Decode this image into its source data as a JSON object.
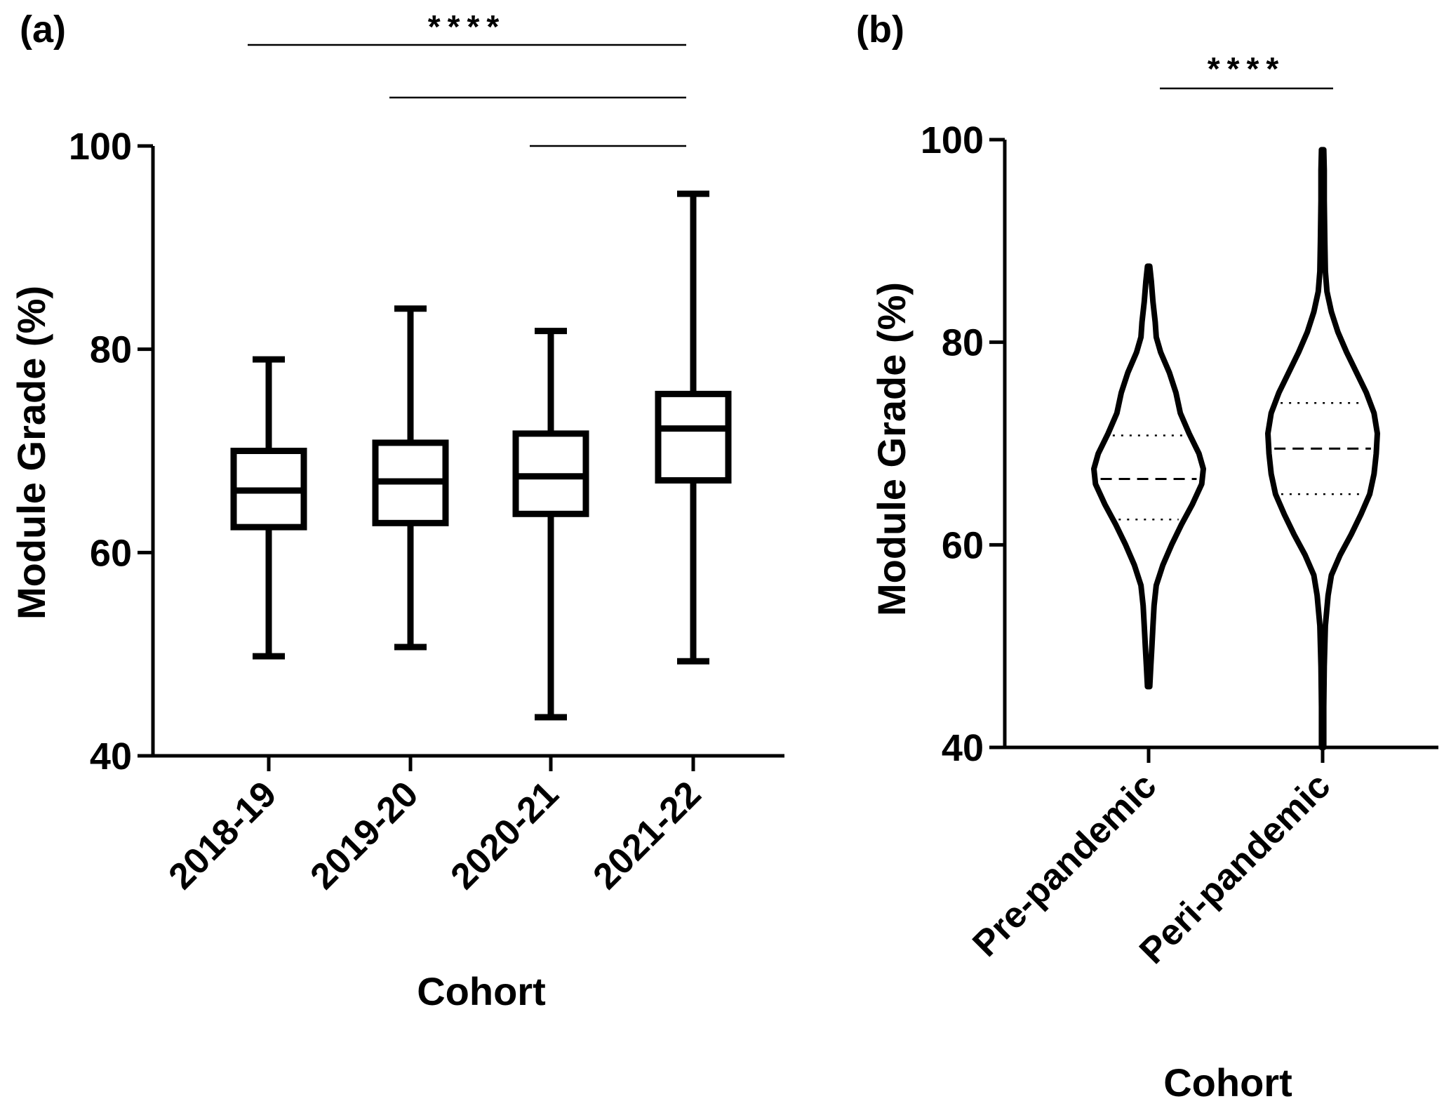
{
  "chart_data": [
    {
      "panel": "(a)",
      "type": "box",
      "xlabel": "Cohort",
      "ylabel": "Module Grade (%)",
      "ylim": [
        40,
        100
      ],
      "yticks": [
        40,
        60,
        80,
        100
      ],
      "categories": [
        "2018-19",
        "2019-20",
        "2020-21",
        "2021-22"
      ],
      "boxes": [
        {
          "min": 49.8,
          "q1": 62.5,
          "median": 66.1,
          "q3": 70.0,
          "max": 79.0
        },
        {
          "min": 50.7,
          "q1": 62.9,
          "median": 67.0,
          "q3": 70.8,
          "max": 84.0
        },
        {
          "min": 43.8,
          "q1": 63.8,
          "median": 67.5,
          "q3": 71.7,
          "max": 81.8
        },
        {
          "min": 49.3,
          "q1": 67.1,
          "median": 72.2,
          "q3": 75.6,
          "max": 95.3
        }
      ],
      "significance": [
        {
          "from": "2018-19",
          "to": "2021-22",
          "label": "****"
        },
        {
          "from": "2019-20",
          "to": "2021-22",
          "label": ""
        },
        {
          "from": "2020-21",
          "to": "2021-22",
          "label": ""
        }
      ]
    },
    {
      "panel": "(b)",
      "type": "violin",
      "xlabel": "Cohort",
      "ylabel": "Module Grade (%)",
      "ylim": [
        40,
        100
      ],
      "yticks": [
        40,
        60,
        80,
        100
      ],
      "categories": [
        "Pre-pandemic",
        "Peri-pandemic"
      ],
      "violins": [
        {
          "min": 46,
          "max": 87.5,
          "q1": 62.5,
          "median": 66.5,
          "q3": 70.8,
          "profile": [
            [
              46,
              0.02
            ],
            [
              48,
              0.04
            ],
            [
              50,
              0.06
            ],
            [
              52,
              0.08
            ],
            [
              54,
              0.1
            ],
            [
              56,
              0.14
            ],
            [
              58,
              0.26
            ],
            [
              60,
              0.42
            ],
            [
              62,
              0.6
            ],
            [
              64,
              0.8
            ],
            [
              66,
              0.97
            ],
            [
              67.5,
              1.0
            ],
            [
              69,
              0.92
            ],
            [
              71,
              0.74
            ],
            [
              73,
              0.58
            ],
            [
              75,
              0.5
            ],
            [
              77,
              0.38
            ],
            [
              79,
              0.22
            ],
            [
              80.5,
              0.14
            ],
            [
              82,
              0.12
            ],
            [
              84,
              0.08
            ],
            [
              86,
              0.05
            ],
            [
              87.5,
              0.02
            ]
          ]
        },
        {
          "min": 40,
          "max": 99,
          "q1": 65.0,
          "median": 69.5,
          "q3": 74.0,
          "profile": [
            [
              40,
              0.02
            ],
            [
              44,
              0.02
            ],
            [
              48,
              0.03
            ],
            [
              52,
              0.05
            ],
            [
              55,
              0.1
            ],
            [
              57,
              0.16
            ],
            [
              59,
              0.32
            ],
            [
              61,
              0.52
            ],
            [
              63,
              0.7
            ],
            [
              65,
              0.86
            ],
            [
              67,
              0.94
            ],
            [
              69,
              0.98
            ],
            [
              71,
              1.0
            ],
            [
              73,
              0.94
            ],
            [
              75,
              0.8
            ],
            [
              77,
              0.62
            ],
            [
              79,
              0.44
            ],
            [
              81,
              0.28
            ],
            [
              83,
              0.16
            ],
            [
              85,
              0.08
            ],
            [
              87,
              0.05
            ],
            [
              90,
              0.04
            ],
            [
              94,
              0.03
            ],
            [
              97,
              0.03
            ],
            [
              99,
              0.02
            ]
          ]
        }
      ],
      "significance": [
        {
          "from": "Pre-pandemic",
          "to": "Peri-pandemic",
          "label": "****"
        }
      ]
    }
  ]
}
